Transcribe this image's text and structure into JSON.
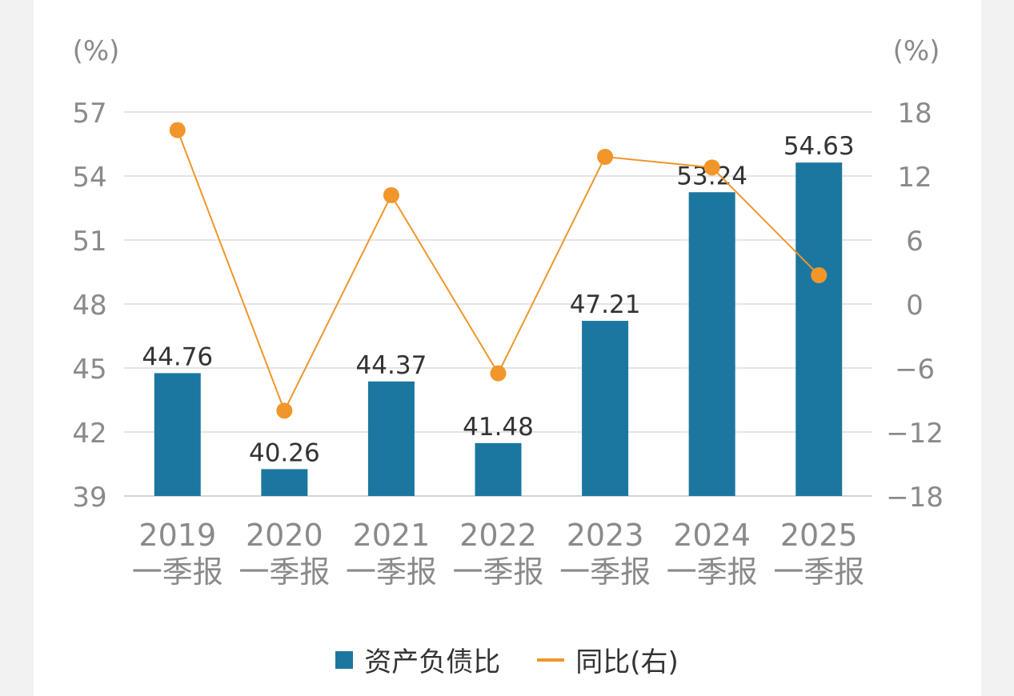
{
  "chart_data": {
    "type": "bar+line",
    "categories": [
      {
        "year": "2019",
        "period": "一季报"
      },
      {
        "year": "2020",
        "period": "一季报"
      },
      {
        "year": "2021",
        "period": "一季报"
      },
      {
        "year": "2022",
        "period": "一季报"
      },
      {
        "year": "2023",
        "period": "一季报"
      },
      {
        "year": "2024",
        "period": "一季报"
      },
      {
        "year": "2025",
        "period": "一季报"
      }
    ],
    "series": [
      {
        "name": "资产负债比",
        "type": "bar",
        "axis": "left",
        "color": "#1c77a0",
        "values": [
          44.76,
          40.26,
          44.37,
          41.48,
          47.21,
          53.24,
          54.63
        ],
        "labels": [
          "44.76",
          "40.26",
          "44.37",
          "41.48",
          "47.21",
          "53.24",
          "54.63"
        ]
      },
      {
        "name": "同比(右)",
        "type": "line",
        "axis": "right",
        "color": "#f0962a",
        "values": [
          16.3,
          -10.0,
          10.2,
          -6.5,
          13.8,
          12.8,
          2.7
        ]
      }
    ],
    "left_axis": {
      "unit": "(%)",
      "min": 39,
      "max": 57,
      "ticks": [
        "57",
        "54",
        "51",
        "48",
        "45",
        "42",
        "39"
      ]
    },
    "right_axis": {
      "unit": "(%)",
      "min": -18,
      "max": 18,
      "ticks": [
        "18",
        "12",
        "6",
        "0",
        "-6",
        "-12",
        "-18"
      ]
    },
    "grid": true,
    "legend_position": "bottom"
  },
  "legend": {
    "bar_label": "资产负债比",
    "line_label": "同比(右)"
  }
}
